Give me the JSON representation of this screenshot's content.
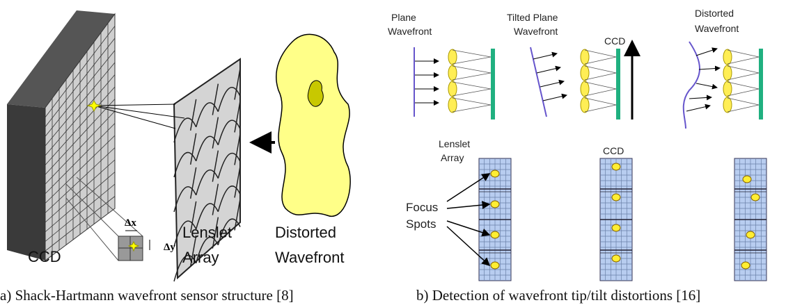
{
  "panel_a": {
    "ccd": "CCD",
    "lenslet": [
      "Lenslet",
      "Array"
    ],
    "distorted": [
      "Distorted",
      "Wavefront"
    ],
    "dx": "Δx",
    "dy": "Δy",
    "caption": "a) Shack-Hartmann wavefront sensor structure [8]"
  },
  "panel_b": {
    "plane": [
      "Plane",
      "Wavefront"
    ],
    "tilted": [
      "Tilted Plane",
      "Wavefront"
    ],
    "distorted": [
      "Distorted",
      "Wavefront"
    ],
    "ccd_top": "CCD",
    "lenslet": [
      "Lenslet",
      "Array"
    ],
    "ccd_bottom": "CCD",
    "focus": [
      "Focus",
      "Spots"
    ],
    "caption": "b) Detection of wavefront tip/tilt distortions [16]"
  }
}
